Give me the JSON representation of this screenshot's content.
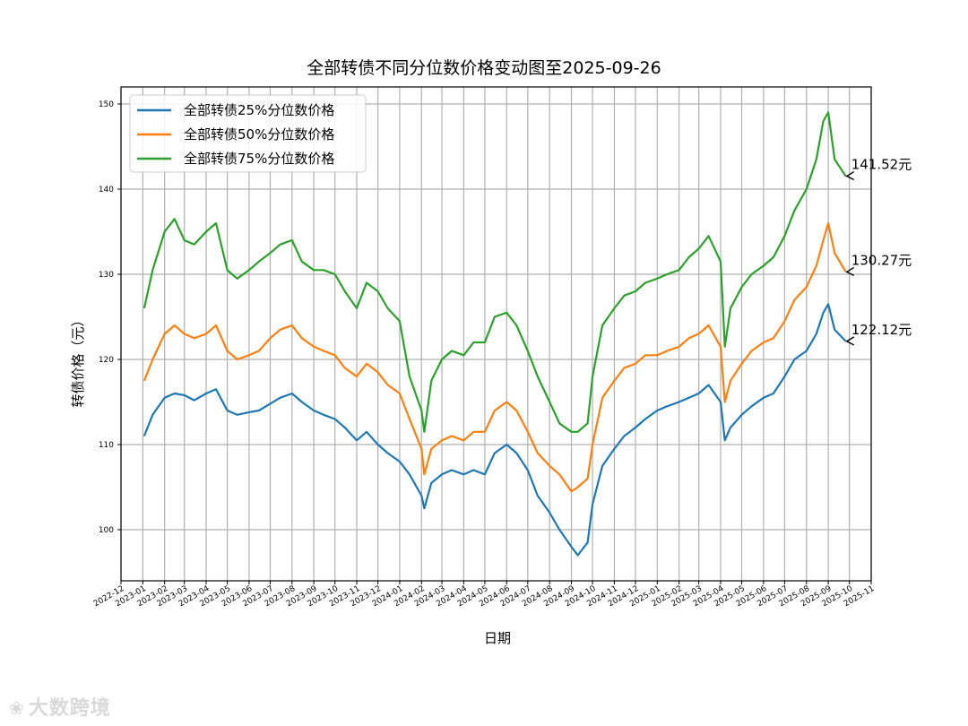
{
  "watermark": {
    "text": "大数跨境",
    "icon": "paw-icon"
  },
  "chart_data": {
    "type": "line",
    "title": "全部转债不同分位数价格变动图至2025-09-26",
    "xlabel": "日期",
    "ylabel": "转债价格（元）",
    "xlim": [
      "2022-12-01",
      "2025-11-01"
    ],
    "ylim": [
      94,
      152
    ],
    "yticks": [
      100,
      110,
      120,
      130,
      140,
      150
    ],
    "grid": true,
    "legend_position": "top-left",
    "x_tick_labels": [
      "2022-12",
      "2023-01",
      "2023-02",
      "2023-03",
      "2023-04",
      "2023-05",
      "2023-06",
      "2023-07",
      "2023-08",
      "2023-09",
      "2023-10",
      "2023-11",
      "2023-12",
      "2024-01",
      "2024-02",
      "2024-03",
      "2024-04",
      "2024-05",
      "2024-06",
      "2024-07",
      "2024-08",
      "2024-09",
      "2024-10",
      "2024-11",
      "2024-12",
      "2025-01",
      "2025-02",
      "2025-03",
      "2025-04",
      "2025-05",
      "2025-06",
      "2025-07",
      "2025-08",
      "2025-09",
      "2025-10",
      "2025-11"
    ],
    "x": [
      "2023-01-03",
      "2023-01-15",
      "2023-02-01",
      "2023-02-15",
      "2023-03-01",
      "2023-03-15",
      "2023-04-01",
      "2023-04-15",
      "2023-05-01",
      "2023-05-15",
      "2023-06-01",
      "2023-06-15",
      "2023-07-01",
      "2023-07-15",
      "2023-08-01",
      "2023-08-15",
      "2023-09-01",
      "2023-09-15",
      "2023-10-01",
      "2023-10-15",
      "2023-11-01",
      "2023-11-15",
      "2023-12-01",
      "2023-12-15",
      "2024-01-01",
      "2024-01-15",
      "2024-02-01",
      "2024-02-05",
      "2024-02-15",
      "2024-03-01",
      "2024-03-15",
      "2024-04-01",
      "2024-04-15",
      "2024-05-01",
      "2024-05-15",
      "2024-06-01",
      "2024-06-15",
      "2024-07-01",
      "2024-07-15",
      "2024-08-01",
      "2024-08-15",
      "2024-09-01",
      "2024-09-10",
      "2024-09-24",
      "2024-10-01",
      "2024-10-15",
      "2024-11-01",
      "2024-11-15",
      "2024-12-01",
      "2024-12-15",
      "2025-01-01",
      "2025-01-15",
      "2025-02-01",
      "2025-02-15",
      "2025-03-01",
      "2025-03-15",
      "2025-04-01",
      "2025-04-07",
      "2025-04-15",
      "2025-05-01",
      "2025-05-15",
      "2025-06-01",
      "2025-06-15",
      "2025-07-01",
      "2025-07-15",
      "2025-08-01",
      "2025-08-15",
      "2025-08-25",
      "2025-09-01",
      "2025-09-10",
      "2025-09-26"
    ],
    "series": [
      {
        "name": "全部转债25%分位数价格",
        "color": "#1f77b4",
        "last_label": "122.12元",
        "values": [
          111.0,
          113.5,
          115.5,
          116.0,
          115.8,
          115.2,
          116.0,
          116.5,
          114.0,
          113.5,
          113.8,
          114.0,
          114.8,
          115.5,
          116.0,
          115.0,
          114.0,
          113.5,
          113.0,
          112.0,
          110.5,
          111.5,
          110.0,
          109.0,
          108.0,
          106.5,
          104.0,
          102.5,
          105.5,
          106.5,
          107.0,
          106.5,
          107.0,
          106.5,
          109.0,
          110.0,
          109.0,
          107.0,
          104.0,
          102.0,
          100.0,
          98.0,
          97.0,
          98.5,
          103.0,
          107.5,
          109.5,
          111.0,
          112.0,
          113.0,
          114.0,
          114.5,
          115.0,
          115.5,
          116.0,
          117.0,
          115.0,
          110.5,
          112.0,
          113.5,
          114.5,
          115.5,
          116.0,
          118.0,
          120.0,
          121.0,
          123.0,
          125.5,
          126.5,
          123.5,
          122.12
        ]
      },
      {
        "name": "全部转债50%分位数价格",
        "color": "#ff7f0e",
        "last_label": "130.27元",
        "values": [
          117.5,
          120.0,
          123.0,
          124.0,
          123.0,
          122.5,
          123.0,
          124.0,
          121.0,
          120.0,
          120.5,
          121.0,
          122.5,
          123.5,
          124.0,
          122.5,
          121.5,
          121.0,
          120.5,
          119.0,
          118.0,
          119.5,
          118.5,
          117.0,
          116.0,
          113.0,
          109.5,
          106.5,
          109.5,
          110.5,
          111.0,
          110.5,
          111.5,
          111.5,
          114.0,
          115.0,
          114.0,
          111.5,
          109.0,
          107.5,
          106.5,
          104.5,
          105.0,
          106.0,
          110.0,
          115.5,
          117.5,
          119.0,
          119.5,
          120.5,
          120.5,
          121.0,
          121.5,
          122.5,
          123.0,
          124.0,
          121.5,
          115.0,
          117.5,
          119.5,
          121.0,
          122.0,
          122.5,
          124.5,
          127.0,
          128.5,
          131.0,
          134.0,
          136.0,
          132.5,
          130.27
        ]
      },
      {
        "name": "全部转债75%分位数价格",
        "color": "#2ca02c",
        "last_label": "141.52元",
        "values": [
          126.0,
          130.5,
          135.0,
          136.5,
          134.0,
          133.5,
          135.0,
          136.0,
          130.5,
          129.5,
          130.5,
          131.5,
          132.5,
          133.5,
          134.0,
          131.5,
          130.5,
          130.5,
          130.0,
          128.0,
          126.0,
          129.0,
          128.0,
          126.0,
          124.5,
          118.0,
          114.0,
          111.5,
          117.5,
          120.0,
          121.0,
          120.5,
          122.0,
          122.0,
          125.0,
          125.5,
          124.0,
          121.0,
          118.0,
          115.0,
          112.5,
          111.5,
          111.5,
          112.5,
          118.0,
          124.0,
          126.0,
          127.5,
          128.0,
          129.0,
          129.5,
          130.0,
          130.5,
          132.0,
          133.0,
          134.5,
          131.5,
          121.5,
          126.0,
          128.5,
          130.0,
          131.0,
          132.0,
          134.5,
          137.5,
          140.0,
          143.5,
          148.0,
          149.0,
          143.5,
          141.52
        ]
      }
    ]
  }
}
